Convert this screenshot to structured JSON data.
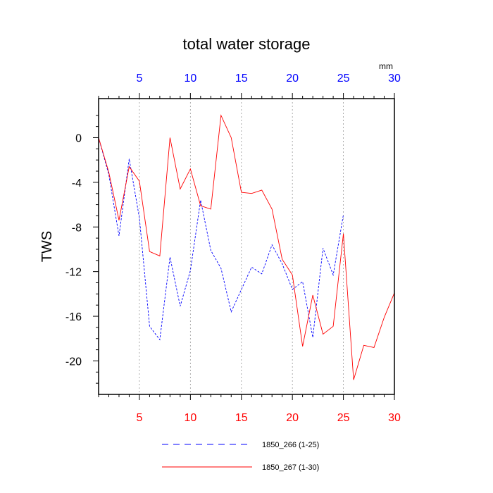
{
  "chart_data": {
    "type": "line",
    "title": "total water storage",
    "ylabel": "TWS",
    "top_axis_unit": "mm",
    "xlim": [
      1,
      30
    ],
    "ylim": [
      -23,
      3.5
    ],
    "x_ticks": [
      5,
      10,
      15,
      20,
      25,
      30
    ],
    "y_ticks": [
      0,
      -4,
      -8,
      -12,
      -16,
      -20
    ],
    "y_tick_labels": [
      "0",
      "-4",
      "-8",
      "-12",
      "-16",
      "-20"
    ],
    "x_tick_labels": [
      "5",
      "10",
      "15",
      "20",
      "25",
      "30"
    ],
    "grid": "vertical dotted at x ticks",
    "series": [
      {
        "name": "1850_266 (1-25)",
        "color": "#0000ff",
        "style": "dashed",
        "x": [
          1,
          2,
          3,
          4,
          5,
          6,
          7,
          8,
          9,
          10,
          11,
          12,
          13,
          14,
          15,
          16,
          17,
          18,
          19,
          20,
          21,
          22,
          23,
          24,
          25
        ],
        "values": [
          0,
          -3.3,
          -8.8,
          -1.9,
          -7.2,
          -16.9,
          -18.1,
          -10.7,
          -15.1,
          -11.9,
          -5.6,
          -10.1,
          -11.7,
          -15.6,
          -13.6,
          -11.6,
          -12.2,
          -9.6,
          -11.3,
          -13.6,
          -12.9,
          -17.9,
          -9.9,
          -12.3,
          -6.9
        ]
      },
      {
        "name": "1850_267 (1-30)",
        "color": "#ff0000",
        "style": "solid",
        "x": [
          1,
          2,
          3,
          4,
          5,
          6,
          7,
          8,
          9,
          10,
          11,
          12,
          13,
          14,
          15,
          16,
          17,
          18,
          19,
          20,
          21,
          22,
          23,
          24,
          25,
          26,
          27,
          28,
          29,
          30
        ],
        "values": [
          0,
          -3.1,
          -7.4,
          -2.6,
          -3.9,
          -10.2,
          -10.6,
          0,
          -4.6,
          -2.8,
          -6.1,
          -6.4,
          2.0,
          0,
          -4.9,
          -5.0,
          -4.7,
          -6.4,
          -10.9,
          -12.3,
          -18.7,
          -14.1,
          -17.6,
          -16.9,
          -8.6,
          -21.7,
          -18.6,
          -18.8,
          -16.1,
          -13.9
        ]
      }
    ],
    "legend": [
      "1850_266 (1-25)",
      "1850_267 (1-30)"
    ],
    "legend_position": "bottom-center"
  }
}
